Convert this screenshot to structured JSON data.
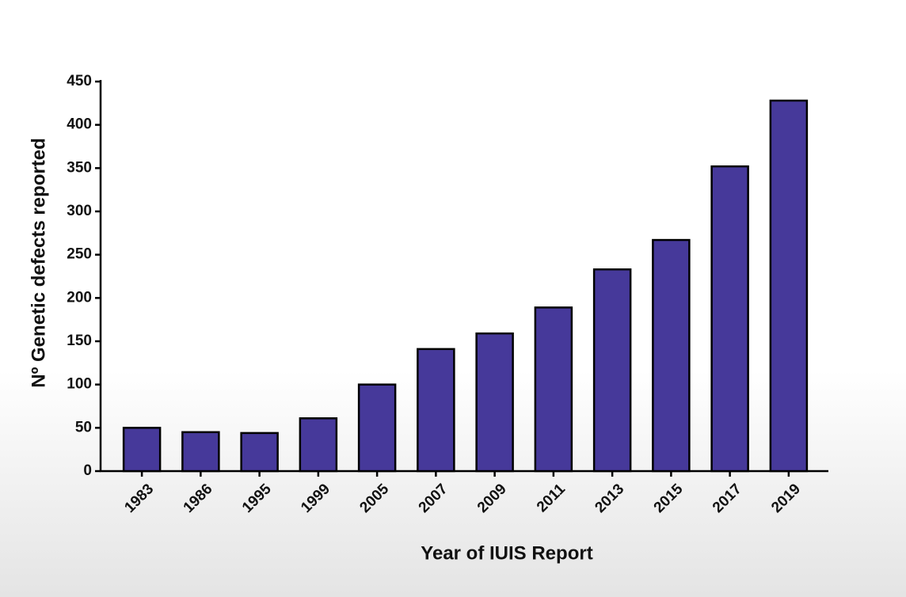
{
  "chart_data": {
    "type": "bar",
    "x_label": "Year of IUIS Report",
    "y_label": "Nº Genetic defects reported",
    "categories": [
      "1983",
      "1986",
      "1995",
      "1999",
      "2005",
      "2007",
      "2009",
      "2011",
      "2013",
      "2015",
      "2017",
      "2019"
    ],
    "values": [
      50,
      45,
      44,
      61,
      100,
      141,
      159,
      189,
      233,
      267,
      352,
      428
    ],
    "color": "#46399a",
    "ylim": [
      0,
      450
    ],
    "yticks": [
      0,
      50,
      100,
      150,
      200,
      250,
      300,
      350,
      400,
      450
    ]
  }
}
